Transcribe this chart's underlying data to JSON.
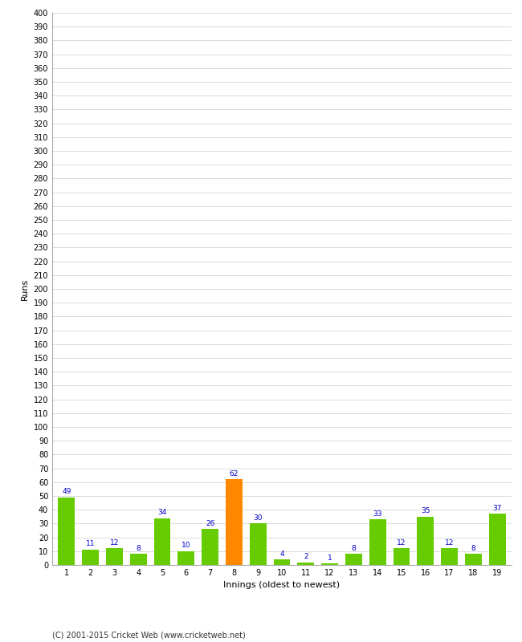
{
  "xlabel": "Innings (oldest to newest)",
  "ylabel": "Runs",
  "categories": [
    "1",
    "2",
    "3",
    "4",
    "5",
    "6",
    "7",
    "8",
    "9",
    "10",
    "11",
    "12",
    "13",
    "14",
    "15",
    "16",
    "17",
    "18",
    "19"
  ],
  "values": [
    49,
    11,
    12,
    8,
    34,
    10,
    26,
    62,
    30,
    4,
    2,
    1,
    8,
    33,
    12,
    35,
    12,
    8,
    37
  ],
  "bar_colors": [
    "#66cc00",
    "#66cc00",
    "#66cc00",
    "#66cc00",
    "#66cc00",
    "#66cc00",
    "#66cc00",
    "#ff8800",
    "#66cc00",
    "#66cc00",
    "#66cc00",
    "#66cc00",
    "#66cc00",
    "#66cc00",
    "#66cc00",
    "#66cc00",
    "#66cc00",
    "#66cc00",
    "#66cc00"
  ],
  "ylim": [
    0,
    400
  ],
  "value_color": "#0000cc",
  "value_fontsize": 6.5,
  "axis_label_fontsize": 8,
  "tick_fontsize": 7,
  "background_color": "#ffffff",
  "grid_color": "#cccccc",
  "footer": "(C) 2001-2015 Cricket Web (www.cricketweb.net)"
}
